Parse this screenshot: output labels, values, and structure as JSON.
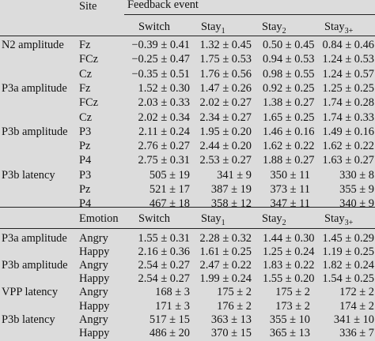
{
  "header": {
    "site_label": "Site",
    "feedback_label": "Feedback event",
    "switch_label": "Switch",
    "stay": "Stay",
    "sub1": "1",
    "sub2": "2",
    "sub3": "3+"
  },
  "rows1": [
    {
      "measure": "N2 amplitude",
      "site": "Fz",
      "switch": "−0.39 ± 0.41",
      "stay1": "1.32 ± 0.45",
      "stay2": "0.50 ± 0.45",
      "stay3": "0.84 ± 0.46"
    },
    {
      "measure": "",
      "site": "FCz",
      "switch": "−0.25 ± 0.47",
      "stay1": "1.75 ± 0.53",
      "stay2": "0.94 ± 0.53",
      "stay3": "1.24 ± 0.53"
    },
    {
      "measure": "",
      "site": "Cz",
      "switch": "−0.35 ± 0.51",
      "stay1": "1.76 ± 0.56",
      "stay2": "0.98 ± 0.55",
      "stay3": "1.24 ± 0.57"
    },
    {
      "measure": "P3a amplitude",
      "site": "Fz",
      "switch": "1.52 ± 0.30",
      "stay1": "1.47 ± 0.26",
      "stay2": "0.92 ± 0.25",
      "stay3": "1.25 ± 0.25"
    },
    {
      "measure": "",
      "site": "FCz",
      "switch": "2.03 ± 0.33",
      "stay1": "2.02 ± 0.27",
      "stay2": "1.38 ± 0.27",
      "stay3": "1.74 ± 0.28"
    },
    {
      "measure": "",
      "site": "Cz",
      "switch": "2.02 ± 0.34",
      "stay1": "2.34 ± 0.27",
      "stay2": "1.65 ± 0.25",
      "stay3": "1.74 ± 0.33"
    },
    {
      "measure": "P3b amplitude",
      "site": "P3",
      "switch": "2.11 ± 0.24",
      "stay1": "1.95 ± 0.20",
      "stay2": "1.46 ± 0.16",
      "stay3": "1.49 ± 0.16"
    },
    {
      "measure": "",
      "site": "Pz",
      "switch": "2.76 ± 0.27",
      "stay1": "2.44 ± 0.20",
      "stay2": "1.62 ± 0.22",
      "stay3": "1.62 ± 0.22"
    },
    {
      "measure": "",
      "site": "P4",
      "switch": "2.75 ± 0.31",
      "stay1": "2.53 ± 0.27",
      "stay2": "1.88 ± 0.27",
      "stay3": "1.63 ± 0.27"
    },
    {
      "measure": "P3b latency",
      "site": "P3",
      "switch": "505 ± 19",
      "stay1": "341 ± 9",
      "stay2": "350 ± 11",
      "stay3": "330 ± 8"
    },
    {
      "measure": "",
      "site": "Pz",
      "switch": "521 ± 17",
      "stay1": "387 ± 19",
      "stay2": "373 ± 11",
      "stay3": "355 ± 9"
    },
    {
      "measure": "",
      "site": "P4",
      "switch": "467 ± 18",
      "stay1": "358 ± 12",
      "stay2": "347 ± 11",
      "stay3": "340 ± 9"
    }
  ],
  "header2": {
    "emotion_label": "Emotion",
    "switch_label": "Switch",
    "stay": "Stay",
    "sub1": "1",
    "sub2": "2",
    "sub3": "3+"
  },
  "rows2": [
    {
      "measure": "P3a amplitude",
      "emotion": "Angry",
      "switch": "1.55 ± 0.31",
      "stay1": "2.28 ± 0.32",
      "stay2": "1.44 ± 0.30",
      "stay3": "1.45 ± 0.29"
    },
    {
      "measure": "",
      "emotion": "Happy",
      "switch": "2.16 ± 0.36",
      "stay1": "1.61 ± 0.25",
      "stay2": "1.25 ± 0.24",
      "stay3": "1.19 ± 0.25"
    },
    {
      "measure": "P3b amplitude",
      "emotion": "Angry",
      "switch": "2.54 ± 0.27",
      "stay1": "2.47 ± 0.22",
      "stay2": "1.83 ± 0.22",
      "stay3": "1.82 ± 0.24"
    },
    {
      "measure": "",
      "emotion": "Happy",
      "switch": "2.54 ± 0.27",
      "stay1": "1.99 ± 0.24",
      "stay2": "1.55 ± 0.20",
      "stay3": "1.54 ± 0.25"
    },
    {
      "measure": "VPP latency",
      "emotion": "Angry",
      "switch": "168 ± 3",
      "stay1": "175 ± 2",
      "stay2": "175 ± 2",
      "stay3": "172 ± 2"
    },
    {
      "measure": "",
      "emotion": "Happy",
      "switch": "171 ± 3",
      "stay1": "176 ± 2",
      "stay2": "173 ± 2",
      "stay3": "174 ± 2"
    },
    {
      "measure": "P3b latency",
      "emotion": "Angry",
      "switch": "517 ± 15",
      "stay1": "363 ± 13",
      "stay2": "355 ± 10",
      "stay3": "341 ± 10"
    },
    {
      "measure": "",
      "emotion": "Happy",
      "switch": "486 ± 20",
      "stay1": "370 ± 15",
      "stay2": "365 ± 13",
      "stay3": "336 ± 7"
    }
  ]
}
